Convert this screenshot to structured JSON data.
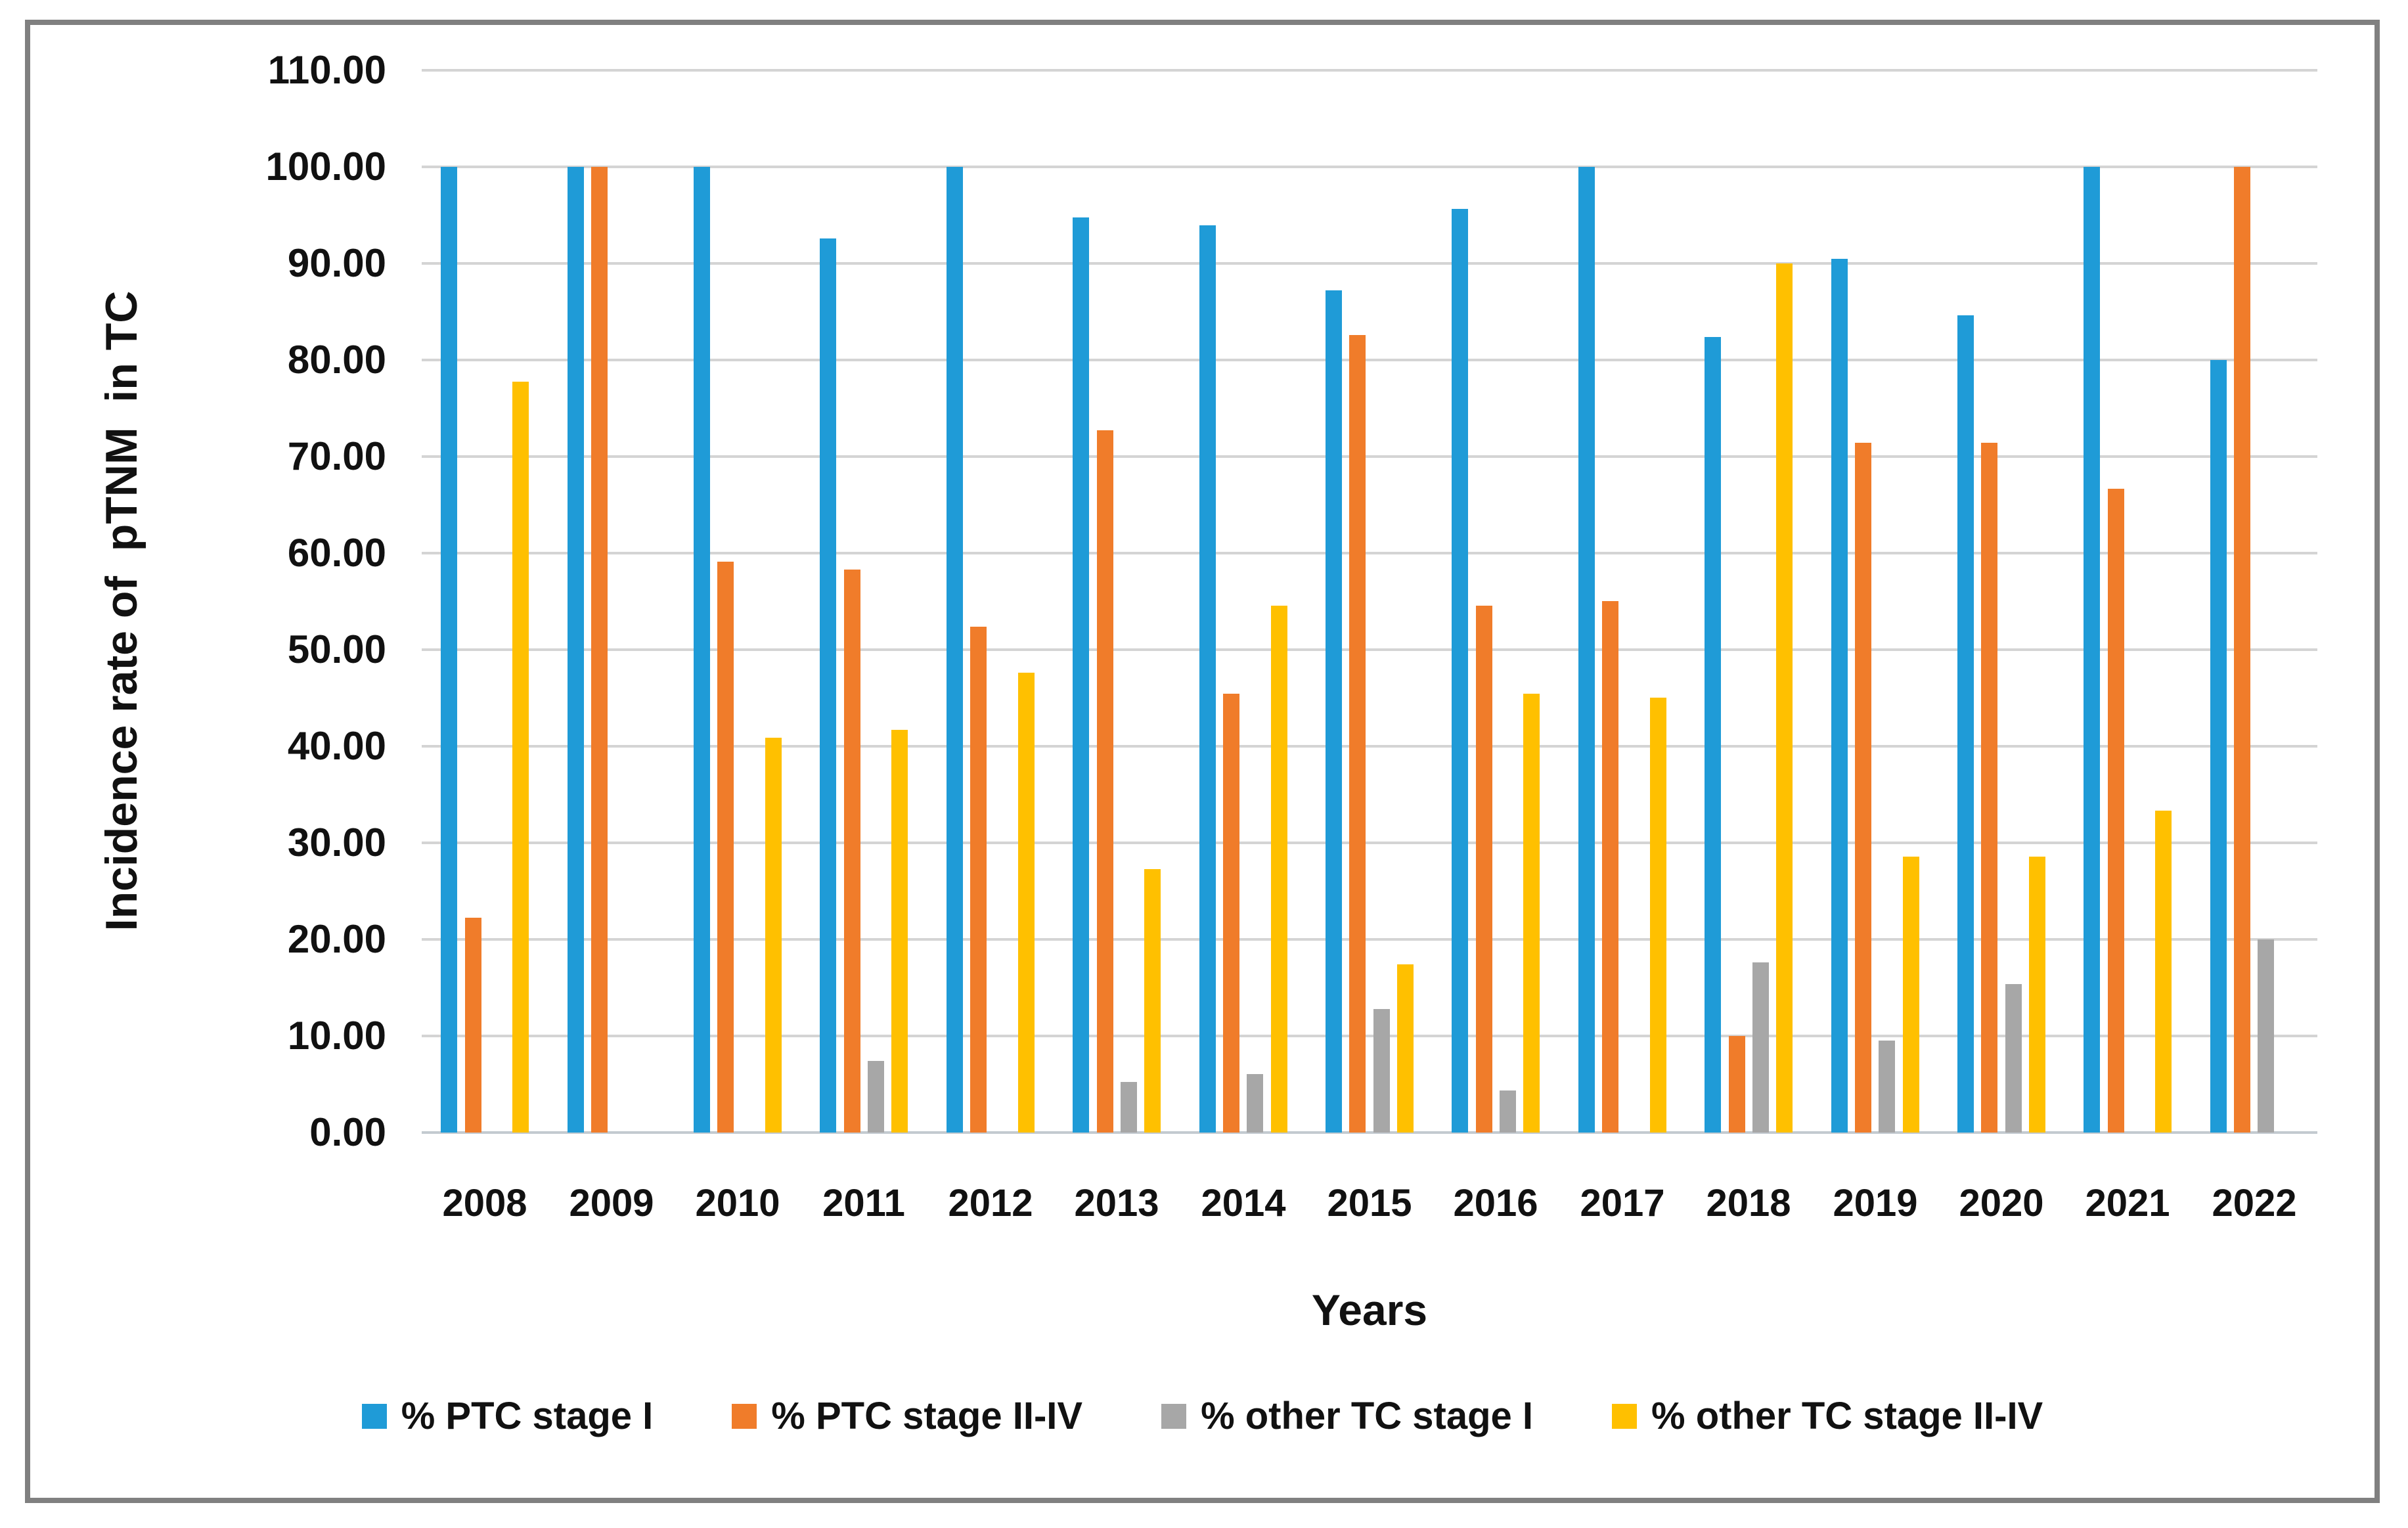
{
  "chart_data": {
    "type": "bar",
    "title": "",
    "xlabel": "Years",
    "ylabel": "Incidence rate of  pTNM  in TC",
    "ylim": [
      0,
      110
    ],
    "ytick_step": 10,
    "yticks": [
      "0.00",
      "10.00",
      "20.00",
      "30.00",
      "40.00",
      "50.00",
      "60.00",
      "70.00",
      "80.00",
      "90.00",
      "100.00",
      "110.00"
    ],
    "grid": true,
    "legend_position": "bottom",
    "categories": [
      "2008",
      "2009",
      "2010",
      "2011",
      "2012",
      "2013",
      "2014",
      "2015",
      "2016",
      "2017",
      "2018",
      "2019",
      "2020",
      "2021",
      "2022"
    ],
    "series": [
      {
        "key": "ptc-stage-i",
        "name": "% PTC stage I",
        "color": "#1f9bd7",
        "values": [
          100,
          100,
          100,
          92.59,
          100,
          94.74,
          93.94,
          87.18,
          95.65,
          100,
          82.35,
          90.48,
          84.62,
          100,
          80.0
        ]
      },
      {
        "key": "ptc-stage-ii-iv",
        "name": "% PTC stage II-IV",
        "color": "#f07c2a",
        "values": [
          22.22,
          100,
          59.09,
          58.33,
          52.38,
          72.73,
          45.45,
          82.61,
          54.55,
          55.0,
          10.0,
          71.43,
          71.43,
          66.67,
          100
        ]
      },
      {
        "key": "other-tc-stage-i",
        "name": "% other TC stage I",
        "color": "#a7a7a7",
        "values": [
          0,
          0,
          0,
          7.41,
          0,
          5.26,
          6.06,
          12.82,
          4.35,
          0,
          17.65,
          9.52,
          15.38,
          0,
          20.0
        ]
      },
      {
        "key": "other-tc-stage-ii-iv",
        "name": "% other TC stage II-IV",
        "color": "#ffc000",
        "values": [
          77.78,
          0,
          40.91,
          41.67,
          47.62,
          27.27,
          54.55,
          17.39,
          45.45,
          45.0,
          90.0,
          28.57,
          28.57,
          33.33,
          0
        ]
      }
    ],
    "colors": {
      "gridline": "#d4d4d4",
      "axis_line": "#c3cad0",
      "text": "#111111",
      "frame_border": "#808080",
      "background": "#ffffff"
    }
  }
}
